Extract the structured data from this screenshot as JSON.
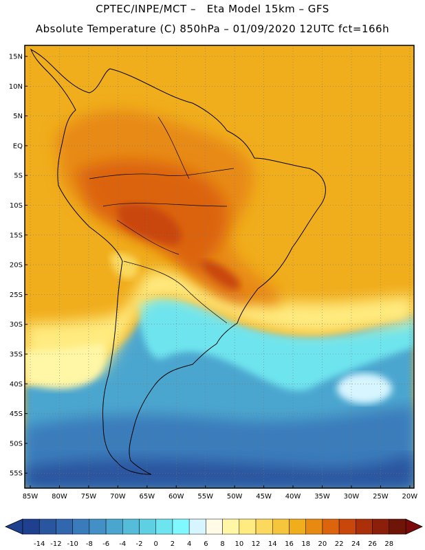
{
  "header": {
    "line1": "CPTEC/INPE/MCT –   Eta Model 15km – GFS",
    "line2": "Absolute Temperature (C) 850hPa – 01/09/2020 12UTC fct=166h"
  },
  "axes": {
    "lat_labels": [
      "15N",
      "10N",
      "5N",
      "EQ",
      "5S",
      "10S",
      "15S",
      "20S",
      "25S",
      "30S",
      "35S",
      "40S",
      "45S",
      "50S",
      "55S"
    ],
    "lon_labels": [
      "85W",
      "80W",
      "75W",
      "70W",
      "65W",
      "60W",
      "55W",
      "50W",
      "45W",
      "40W",
      "35W",
      "30W",
      "25W",
      "20W"
    ]
  },
  "colorbar": {
    "ticks": [
      "-14",
      "-12",
      "-10",
      "-8",
      "-6",
      "-4",
      "-2",
      "0",
      "2",
      "4",
      "6",
      "8",
      "10",
      "12",
      "14",
      "16",
      "18",
      "20",
      "22",
      "24",
      "26",
      "28"
    ],
    "colors": [
      "#1f3f8f",
      "#2a559f",
      "#3168ad",
      "#3a7bbb",
      "#4390c6",
      "#4ba6cf",
      "#55bcd9",
      "#5fd0e3",
      "#6ee4ee",
      "#7ff9ff",
      "#d6f5ff",
      "#fffbe6",
      "#fff6a6",
      "#ffeb80",
      "#fad95e",
      "#f5c63c",
      "#f0ad1c",
      "#e88a12",
      "#dc640d",
      "#c9470b",
      "#aa300a",
      "#8c1f0a",
      "#6e1508"
    ],
    "low_color": "#1f3f8f",
    "high_color": "#7a0a0a"
  }
}
